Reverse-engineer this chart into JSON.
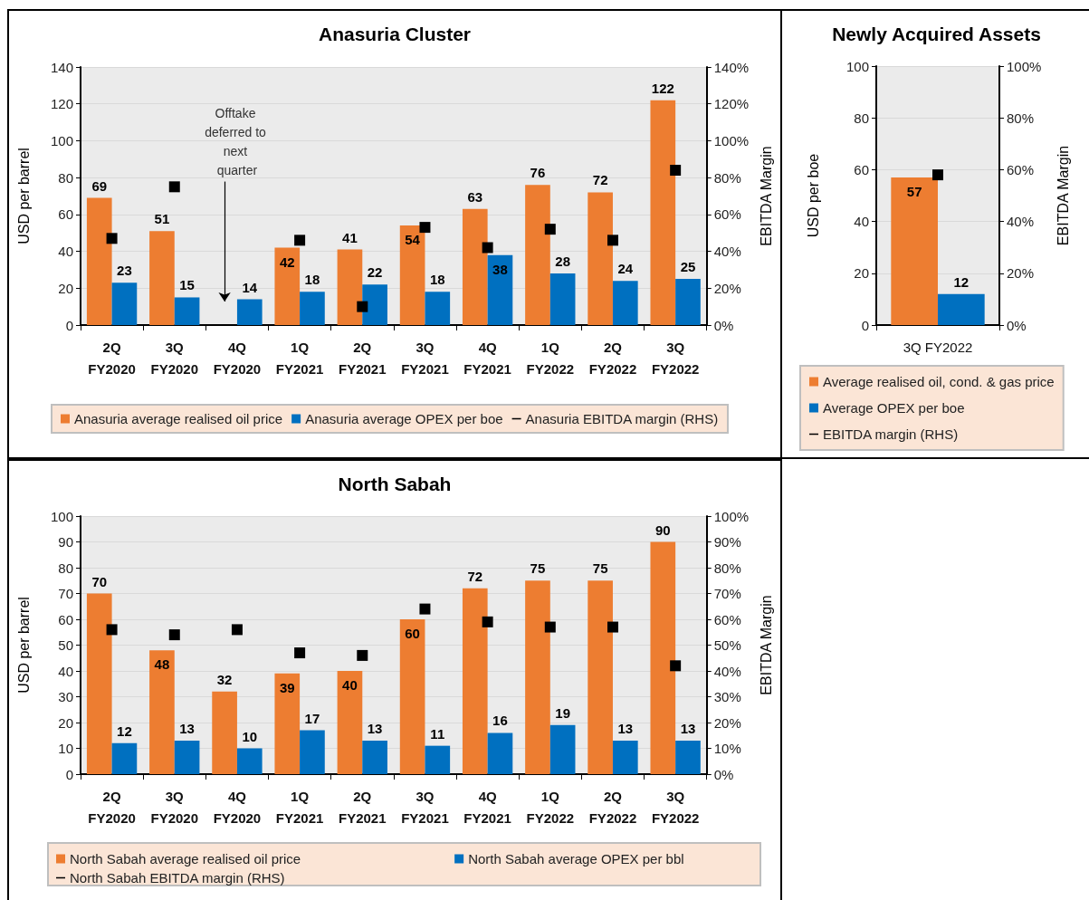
{
  "chart_data": [
    {
      "type": "bar",
      "title": "Anasuria Cluster",
      "ylabel": "USD per barrel",
      "y2label": "EBITDA Margin",
      "categories": [
        "2Q FY2020",
        "3Q FY2020",
        "4Q FY2020",
        "1Q FY2021",
        "2Q FY2021",
        "3Q FY2021",
        "4Q FY2021",
        "1Q FY2022",
        "2Q FY2022",
        "3Q FY2022"
      ],
      "series": [
        {
          "name": "Anasuria average realised oil price",
          "color": "#ed7d31",
          "values": [
            69,
            51,
            null,
            42,
            41,
            54,
            63,
            76,
            72,
            122
          ],
          "value_labels": [
            "69",
            "51",
            null,
            "42",
            "41",
            "54",
            "63",
            "76",
            "72",
            "122"
          ]
        },
        {
          "name": "Anasuria average OPEX per boe",
          "color": "#0070c0",
          "values": [
            23,
            15,
            14,
            18,
            22,
            18,
            38,
            28,
            24,
            25
          ],
          "value_labels": [
            "23",
            "15",
            "14",
            "18",
            "22",
            "18",
            "38",
            "28",
            "24",
            "25"
          ]
        },
        {
          "name": "Anasuria EBITDA margin (RHS)",
          "type": "scatter",
          "axis": "y2",
          "color": "#000000",
          "values": [
            47,
            75,
            null,
            46,
            10,
            53,
            42,
            52,
            46,
            84
          ]
        }
      ],
      "ylim": [
        0,
        140
      ],
      "yticks": [
        0,
        20,
        40,
        60,
        80,
        100,
        120,
        140
      ],
      "y2lim": [
        0,
        140
      ],
      "y2ticks": [
        {
          "value": 0,
          "label": "0%"
        },
        {
          "value": 20,
          "label": "20%"
        },
        {
          "value": 40,
          "label": "40%"
        },
        {
          "value": 60,
          "label": "60%"
        },
        {
          "value": 80,
          "label": "80%"
        },
        {
          "value": 100,
          "label": "100%"
        },
        {
          "value": 120,
          "label": "120%"
        },
        {
          "value": 140,
          "label": "140%"
        }
      ],
      "annotations": [
        "Offtake deferred to next quarter"
      ],
      "grid": "y",
      "legend": "bottom",
      "marker": "square"
    },
    {
      "type": "bar",
      "title": "Newly Acquired Assets",
      "ylabel": "USD per boe",
      "y2label": "EBITDA Margin",
      "categories": [
        "3Q FY2022"
      ],
      "series": [
        {
          "name": "Average realised oil, cond. & gas price",
          "color": "#ed7d31",
          "values": [
            57
          ],
          "value_labels": [
            "57"
          ]
        },
        {
          "name": "Average OPEX per boe",
          "color": "#0070c0",
          "values": [
            12
          ],
          "value_labels": [
            "12"
          ]
        },
        {
          "name": "EBITDA margin (RHS)",
          "type": "scatter",
          "axis": "y2",
          "color": "#000000",
          "values": [
            58
          ]
        }
      ],
      "ylim": [
        0,
        100
      ],
      "yticks": [
        0,
        20,
        40,
        60,
        80,
        100
      ],
      "y2lim": [
        0,
        100
      ],
      "y2ticks": [
        {
          "value": 0,
          "label": "0%"
        },
        {
          "value": 20,
          "label": "20%"
        },
        {
          "value": 40,
          "label": "40%"
        },
        {
          "value": 60,
          "label": "60%"
        },
        {
          "value": 80,
          "label": "80%"
        },
        {
          "value": 100,
          "label": "100%"
        }
      ],
      "grid": "y",
      "legend": "bottom",
      "marker": "square"
    },
    {
      "type": "bar",
      "title": "North Sabah",
      "ylabel": "USD per barrel",
      "y2label": "EBITDA Margin",
      "categories": [
        "2Q FY2020",
        "3Q FY2020",
        "4Q FY2020",
        "1Q FY2021",
        "2Q FY2021",
        "3Q FY2021",
        "4Q FY2021",
        "1Q FY2022",
        "2Q FY2022",
        "3Q FY2022"
      ],
      "series": [
        {
          "name": "North Sabah average realised oil price",
          "color": "#ed7d31",
          "values": [
            70,
            48,
            32,
            39,
            40,
            60,
            72,
            75,
            75,
            90
          ],
          "value_labels": [
            "70",
            "48",
            "32",
            "39",
            "40",
            "60",
            "72",
            "75",
            "75",
            "90"
          ]
        },
        {
          "name": "North Sabah average OPEX per bbl",
          "color": "#0070c0",
          "values": [
            12,
            13,
            10,
            17,
            13,
            11,
            16,
            19,
            13,
            13
          ],
          "value_labels": [
            "12",
            "13",
            "10",
            "17",
            "13",
            "11",
            "16",
            "19",
            "13",
            "13"
          ]
        },
        {
          "name": "North Sabah EBITDA margin (RHS)",
          "type": "scatter",
          "axis": "y2",
          "color": "#000000",
          "values": [
            56,
            54,
            56,
            47,
            46,
            64,
            59,
            57,
            57,
            42
          ]
        }
      ],
      "ylim": [
        0,
        100
      ],
      "yticks": [
        0,
        10,
        20,
        30,
        40,
        50,
        60,
        70,
        80,
        90,
        100
      ],
      "y2lim": [
        0,
        100
      ],
      "y2ticks": [
        {
          "value": 0,
          "label": "0%"
        },
        {
          "value": 10,
          "label": "10%"
        },
        {
          "value": 20,
          "label": "20%"
        },
        {
          "value": 30,
          "label": "30%"
        },
        {
          "value": 40,
          "label": "40%"
        },
        {
          "value": 50,
          "label": "50%"
        },
        {
          "value": 60,
          "label": "60%"
        },
        {
          "value": 70,
          "label": "70%"
        },
        {
          "value": 80,
          "label": "80%"
        },
        {
          "value": 90,
          "label": "90%"
        },
        {
          "value": 100,
          "label": "100%"
        }
      ],
      "grid": "y",
      "legend": "bottom",
      "marker": "square"
    }
  ]
}
